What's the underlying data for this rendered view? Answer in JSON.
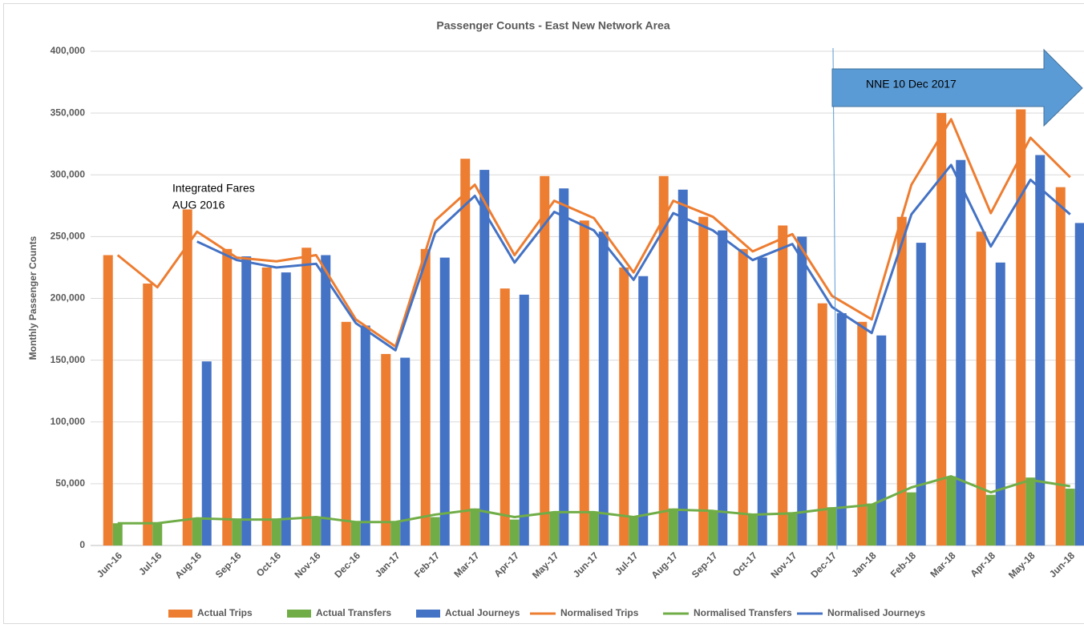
{
  "chart_data": {
    "type": "bar",
    "title": "Passenger Counts - East New Network Area",
    "y_label": "Monthly Passenger Counts",
    "annotations": [
      "Integrated Fares",
      "AUG 2016",
      "NNE 10 Dec 2017"
    ],
    "categories": [
      "Jun-16",
      "Jul-16",
      "Aug-16",
      "Sep-16",
      "Oct-16",
      "Nov-16",
      "Dec-16",
      "Jan-17",
      "Feb-17",
      "Mar-17",
      "Apr-17",
      "May-17",
      "Jun-17",
      "Jul-17",
      "Aug-17",
      "Sep-17",
      "Oct-17",
      "Nov-17",
      "Dec-17",
      "Jan-18",
      "Feb-18",
      "Mar-18",
      "Apr-18",
      "May-18",
      "Jun-18"
    ],
    "series": [
      {
        "name": "Actual Trips",
        "type": "bar",
        "color": "#ed7d31",
        "values": [
          235000,
          212000,
          272000,
          240000,
          225000,
          241000,
          181000,
          155000,
          240000,
          313000,
          208000,
          299000,
          263000,
          225000,
          299000,
          266000,
          240000,
          259000,
          196000,
          181000,
          266000,
          350000,
          254000,
          353000,
          290000
        ]
      },
      {
        "name": "Actual Transfers",
        "type": "bar",
        "color": "#70ad47",
        "values": [
          18000,
          18000,
          22000,
          21000,
          21000,
          23000,
          19000,
          19000,
          23000,
          30000,
          21000,
          27000,
          27000,
          23000,
          30000,
          28000,
          25000,
          27000,
          31000,
          34000,
          43000,
          56000,
          41000,
          55000,
          46000
        ]
      },
      {
        "name": "Actual Journeys",
        "type": "bar",
        "color": "#4472c4",
        "values": [
          null,
          null,
          149000,
          234000,
          221000,
          235000,
          178000,
          152000,
          233000,
          304000,
          203000,
          289000,
          254000,
          218000,
          288000,
          255000,
          233000,
          250000,
          188000,
          170000,
          245000,
          312000,
          229000,
          316000,
          261000
        ]
      },
      {
        "name": "Normalised Trips",
        "type": "line",
        "color": "#ed7d31",
        "values": [
          235000,
          209000,
          254000,
          233000,
          230000,
          235000,
          183000,
          161000,
          263000,
          292000,
          235000,
          279000,
          265000,
          221000,
          279000,
          266000,
          238000,
          252000,
          202000,
          183000,
          292000,
          345000,
          269000,
          330000,
          298000
        ]
      },
      {
        "name": "Normalised Transfers",
        "type": "line",
        "color": "#70ad47",
        "values": [
          18000,
          18000,
          22000,
          21000,
          21000,
          23000,
          19000,
          19000,
          25000,
          29000,
          23000,
          27000,
          27000,
          23000,
          29000,
          28000,
          25000,
          26000,
          30000,
          33000,
          47000,
          56000,
          43000,
          53000,
          48000
        ]
      },
      {
        "name": "Normalised Journeys",
        "type": "line",
        "color": "#4472c4",
        "values": [
          null,
          null,
          246000,
          231000,
          225000,
          228000,
          180000,
          158000,
          253000,
          283000,
          229000,
          270000,
          255000,
          215000,
          269000,
          255000,
          231000,
          244000,
          193000,
          172000,
          268000,
          308000,
          242000,
          296000,
          268000
        ]
      }
    ],
    "ylim": [
      0,
      400000
    ],
    "yticks": [
      0,
      {
        "value": 50000,
        "label": "50,000"
      },
      {
        "value": 100000,
        "label": "100,000"
      },
      {
        "value": 150000,
        "label": "150,000"
      },
      {
        "value": 200000,
        "label": "200,000"
      },
      {
        "value": 250000,
        "label": "250,000"
      },
      {
        "value": 300000,
        "label": "300,000"
      },
      {
        "value": 350000,
        "label": "350,000"
      },
      {
        "value": 400000,
        "label": "400,000"
      }
    ],
    "grid": true,
    "legend": "bottom"
  }
}
